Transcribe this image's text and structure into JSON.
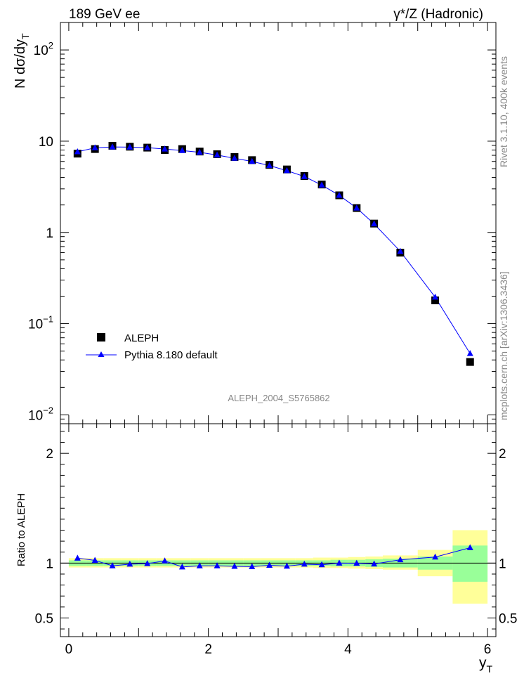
{
  "header": {
    "energy_label": "189 GeV ee",
    "process_label": "γ*/Z (Hadronic)"
  },
  "side": {
    "rivet_label": "Rivet 3.1.10,  400k events",
    "mcplots_label": "mcplots.cern.ch [arXiv:1306.3436]"
  },
  "chart_data": [
    {
      "type": "scatter",
      "panel": "main",
      "ylabel": "N dσ/dy_T",
      "yscale": "log",
      "ylim": [
        0.008,
        200
      ],
      "xlim": [
        -0.12,
        6.12
      ],
      "analysis_label": "ALEPH_2004_S5765862",
      "y_tick_labels": [
        "10^-2",
        "10^-1",
        "1",
        "10",
        "10^2"
      ],
      "legend_position": "bottom-left",
      "series": [
        {
          "name": "ALEPH",
          "marker": "square",
          "color": "#000000",
          "x": [
            0.125,
            0.375,
            0.625,
            0.875,
            1.125,
            1.375,
            1.625,
            1.875,
            2.125,
            2.375,
            2.625,
            2.875,
            3.125,
            3.375,
            3.625,
            3.875,
            4.125,
            4.375,
            4.75,
            5.25,
            5.75
          ],
          "y": [
            7.3,
            8.2,
            8.9,
            8.7,
            8.5,
            8.0,
            8.2,
            7.7,
            7.2,
            6.7,
            6.2,
            5.5,
            4.9,
            4.15,
            3.35,
            2.55,
            1.85,
            1.25,
            0.6,
            0.18,
            0.038
          ]
        },
        {
          "name": "Pythia 8.180 default",
          "marker": "triangle",
          "color": "#0000ff",
          "x": [
            0.125,
            0.375,
            0.625,
            0.875,
            1.125,
            1.375,
            1.625,
            1.875,
            2.125,
            2.375,
            2.625,
            2.875,
            3.125,
            3.375,
            3.625,
            3.875,
            4.125,
            4.375,
            4.75,
            5.25,
            5.75
          ],
          "y": [
            7.65,
            8.45,
            8.65,
            8.6,
            8.5,
            8.2,
            7.9,
            7.55,
            7.05,
            6.5,
            6.0,
            5.4,
            4.75,
            4.1,
            3.3,
            2.55,
            1.85,
            1.24,
            0.62,
            0.195,
            0.047
          ]
        }
      ]
    },
    {
      "type": "line",
      "panel": "ratio",
      "xlabel": "y_T",
      "ylabel": "Ratio to ALEPH",
      "ylim": [
        0.33,
        2.27
      ],
      "xlim": [
        -0.12,
        6.12
      ],
      "x_tick_labels": [
        "0",
        "2",
        "4",
        "6"
      ],
      "y_tick_labels": [
        "0.5",
        "1",
        "2"
      ],
      "bands": [
        {
          "x0": 0.0,
          "x1": 0.25,
          "inner": [
            0.975,
            1.025
          ],
          "outer": [
            0.96,
            1.045
          ]
        },
        {
          "x0": 0.25,
          "x1": 0.5,
          "inner": [
            0.975,
            1.025
          ],
          "outer": [
            0.96,
            1.045
          ]
        },
        {
          "x0": 0.5,
          "x1": 0.75,
          "inner": [
            0.975,
            1.025
          ],
          "outer": [
            0.96,
            1.045
          ]
        },
        {
          "x0": 0.75,
          "x1": 1.0,
          "inner": [
            0.975,
            1.025
          ],
          "outer": [
            0.96,
            1.045
          ]
        },
        {
          "x0": 1.0,
          "x1": 1.25,
          "inner": [
            0.975,
            1.025
          ],
          "outer": [
            0.96,
            1.045
          ]
        },
        {
          "x0": 1.25,
          "x1": 1.5,
          "inner": [
            0.975,
            1.025
          ],
          "outer": [
            0.96,
            1.045
          ]
        },
        {
          "x0": 1.5,
          "x1": 1.75,
          "inner": [
            0.975,
            1.025
          ],
          "outer": [
            0.96,
            1.045
          ]
        },
        {
          "x0": 1.75,
          "x1": 2.0,
          "inner": [
            0.975,
            1.025
          ],
          "outer": [
            0.96,
            1.045
          ]
        },
        {
          "x0": 2.0,
          "x1": 2.25,
          "inner": [
            0.975,
            1.025
          ],
          "outer": [
            0.96,
            1.045
          ]
        },
        {
          "x0": 2.25,
          "x1": 2.5,
          "inner": [
            0.975,
            1.025
          ],
          "outer": [
            0.96,
            1.045
          ]
        },
        {
          "x0": 2.5,
          "x1": 2.75,
          "inner": [
            0.975,
            1.025
          ],
          "outer": [
            0.96,
            1.045
          ]
        },
        {
          "x0": 2.75,
          "x1": 3.0,
          "inner": [
            0.975,
            1.025
          ],
          "outer": [
            0.96,
            1.045
          ]
        },
        {
          "x0": 3.0,
          "x1": 3.25,
          "inner": [
            0.975,
            1.025
          ],
          "outer": [
            0.96,
            1.045
          ]
        },
        {
          "x0": 3.25,
          "x1": 3.5,
          "inner": [
            0.975,
            1.025
          ],
          "outer": [
            0.96,
            1.045
          ]
        },
        {
          "x0": 3.5,
          "x1": 3.75,
          "inner": [
            0.975,
            1.025
          ],
          "outer": [
            0.955,
            1.05
          ]
        },
        {
          "x0": 3.75,
          "x1": 4.0,
          "inner": [
            0.97,
            1.03
          ],
          "outer": [
            0.955,
            1.05
          ]
        },
        {
          "x0": 4.0,
          "x1": 4.25,
          "inner": [
            0.97,
            1.03
          ],
          "outer": [
            0.95,
            1.055
          ]
        },
        {
          "x0": 4.25,
          "x1": 4.5,
          "inner": [
            0.965,
            1.035
          ],
          "outer": [
            0.945,
            1.06
          ]
        },
        {
          "x0": 4.5,
          "x1": 5.0,
          "inner": [
            0.96,
            1.04
          ],
          "outer": [
            0.94,
            1.07
          ]
        },
        {
          "x0": 5.0,
          "x1": 5.5,
          "inner": [
            0.94,
            1.06
          ],
          "outer": [
            0.88,
            1.12
          ]
        },
        {
          "x0": 5.5,
          "x1": 6.0,
          "inner": [
            0.83,
            1.16
          ],
          "outer": [
            0.63,
            1.3
          ]
        }
      ],
      "series": [
        {
          "name": "Pythia 8.180 default",
          "color": "#0000ff",
          "x": [
            0.125,
            0.375,
            0.625,
            0.875,
            1.125,
            1.375,
            1.625,
            1.875,
            2.125,
            2.375,
            2.625,
            2.875,
            3.125,
            3.375,
            3.625,
            3.875,
            4.125,
            4.375,
            4.75,
            5.25,
            5.75
          ],
          "y": [
            1.045,
            1.025,
            0.975,
            0.99,
            0.995,
            1.02,
            0.965,
            0.975,
            0.975,
            0.97,
            0.968,
            0.98,
            0.972,
            0.99,
            0.985,
            1.0,
            0.998,
            0.992,
            1.03,
            1.055,
            1.14
          ]
        }
      ]
    }
  ]
}
